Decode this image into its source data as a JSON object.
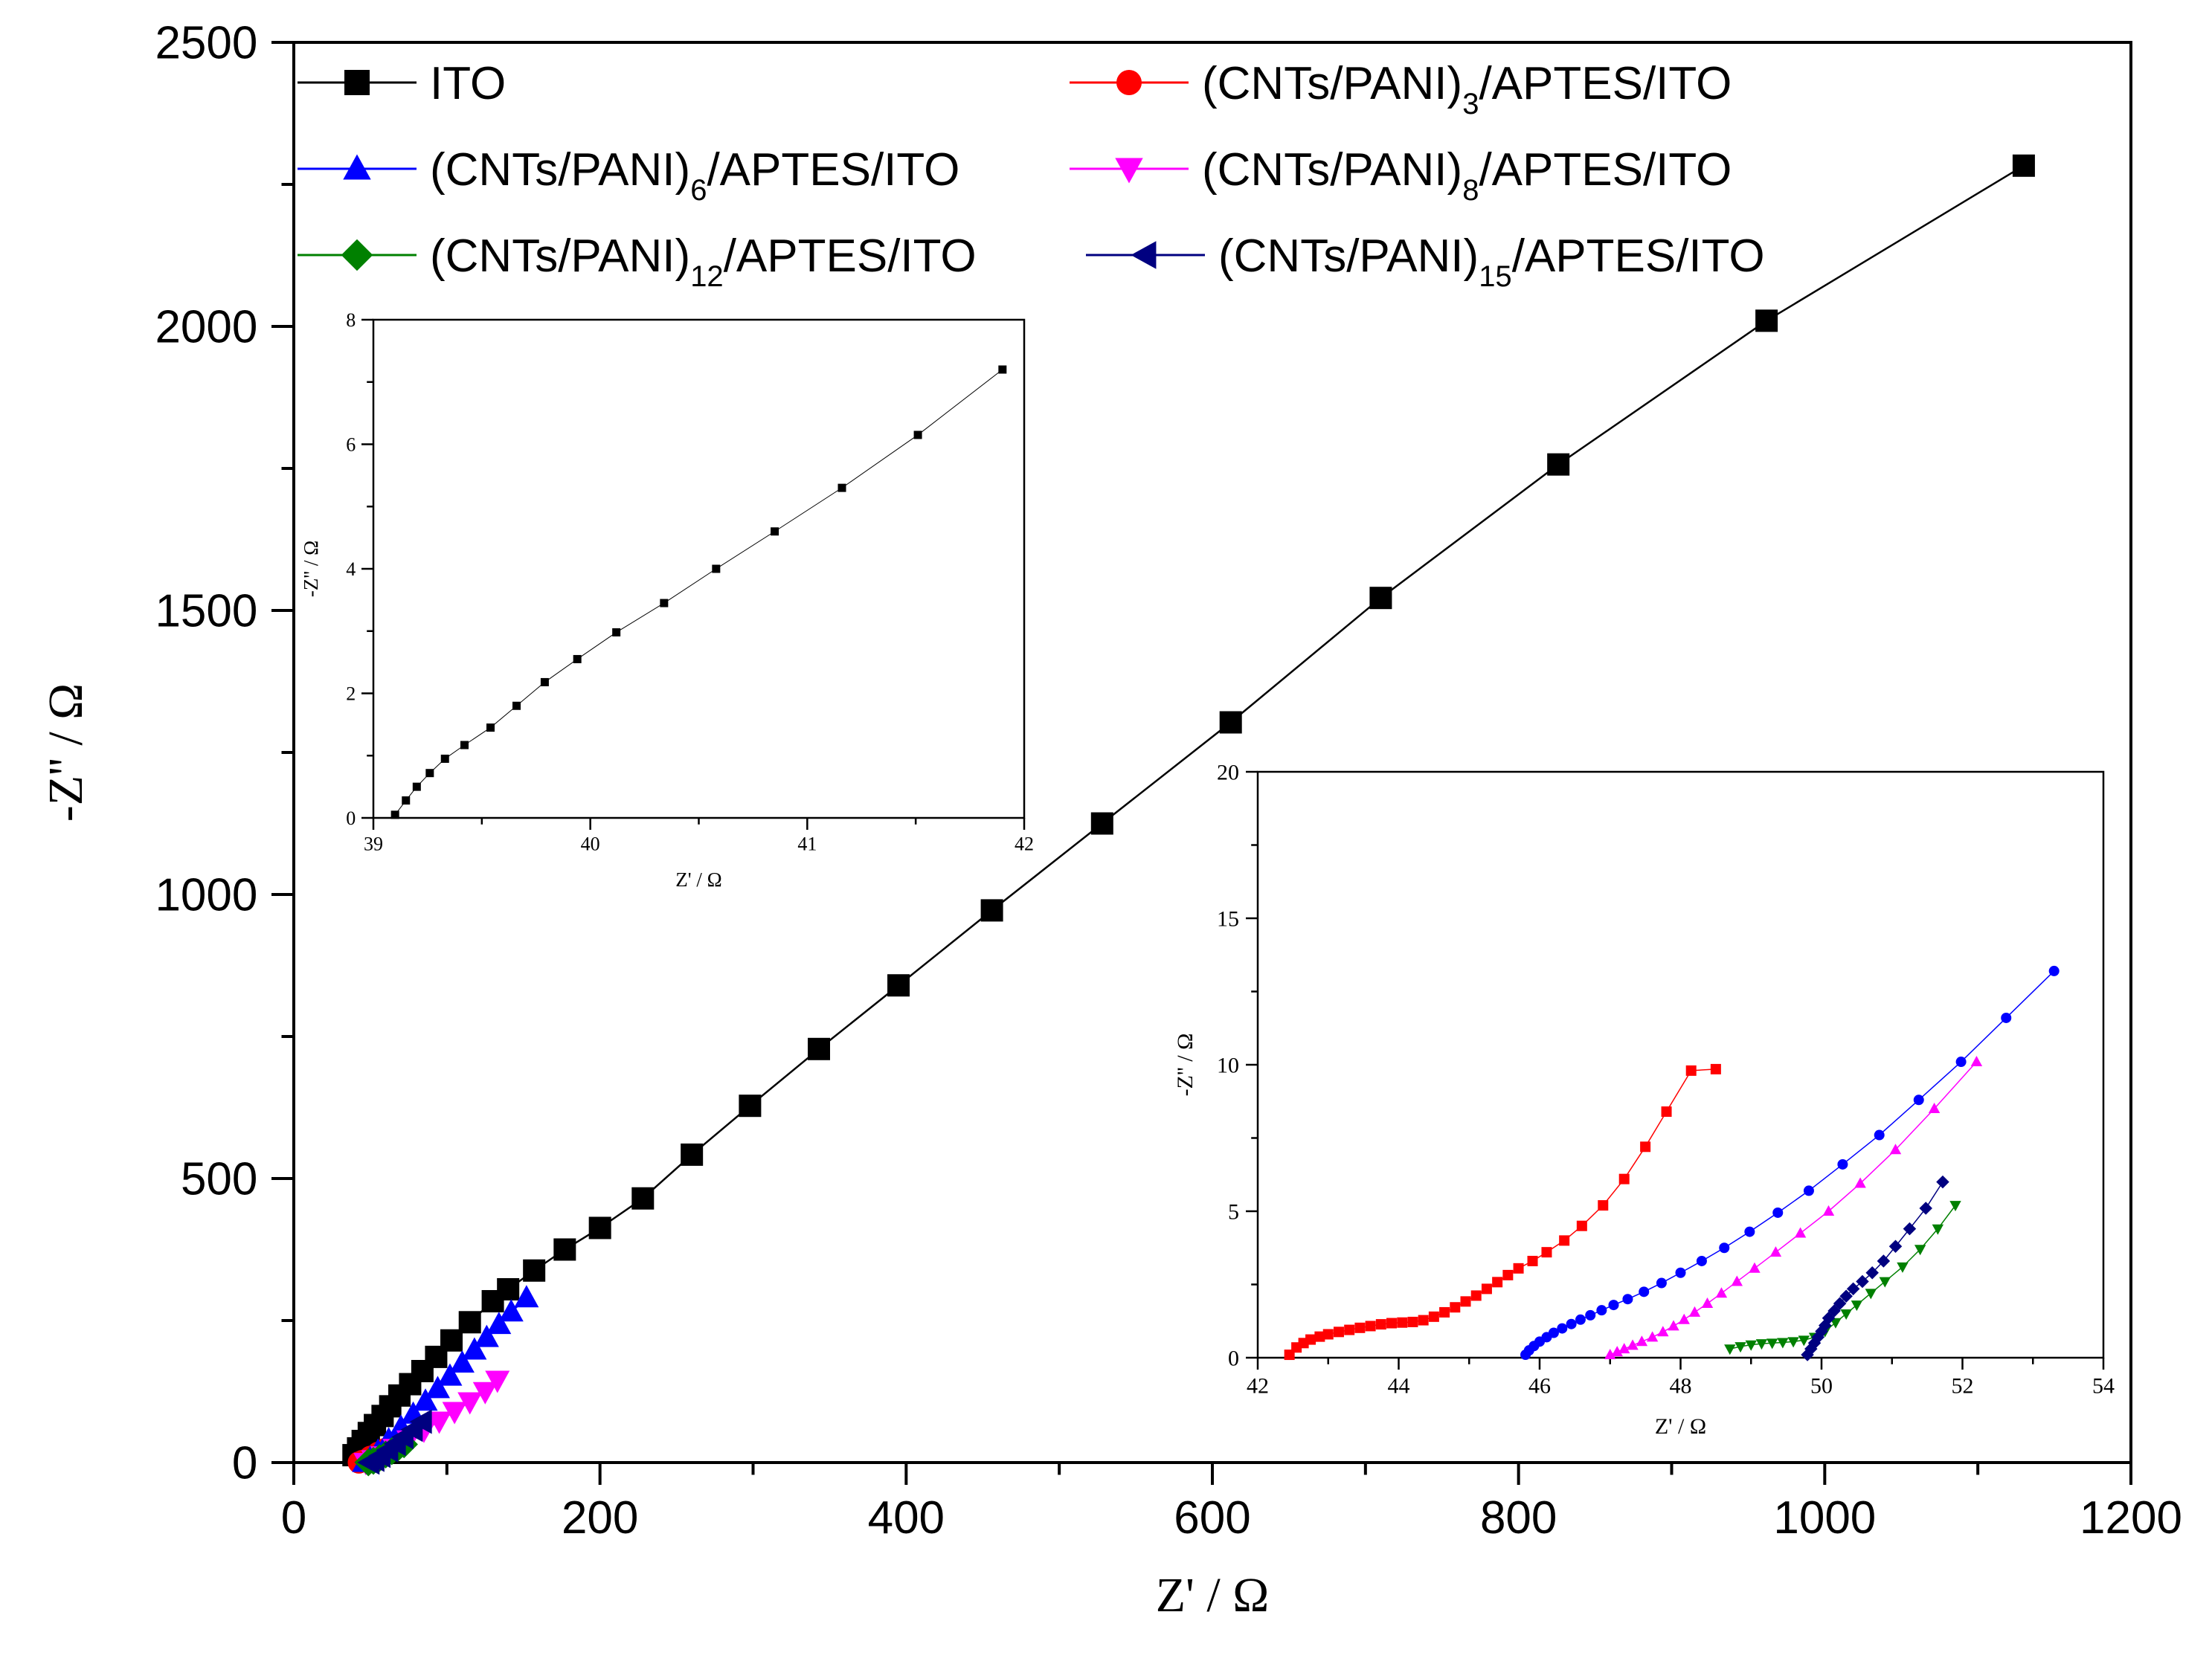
{
  "colors": {
    "ito": "#000000",
    "cnt3": "#ff0000",
    "cnt6": "#0000ff",
    "cnt8": "#ff00ff",
    "cnt12": "#008000",
    "cnt15": "#000080"
  },
  "chart_data": [
    {
      "id": "main",
      "type": "scatter",
      "xlabel": "Z' / Ω",
      "ylabel": "-Z'' / Ω",
      "xlim": [
        0,
        1200
      ],
      "ylim": [
        0,
        2500
      ],
      "xticks": [
        "0",
        "200",
        "400",
        "600",
        "800",
        "1000",
        "1200"
      ],
      "yticks": [
        "0",
        "500",
        "1000",
        "1500",
        "2000",
        "2500"
      ],
      "legend_position": "top",
      "series": [
        {
          "key": "ito",
          "name": "ITO",
          "marker": "square",
          "color": "#000000",
          "legend": {
            "main": "ITO",
            "sub": "",
            "tail": ""
          },
          "x": [
            39,
            42,
            45,
            49,
            53,
            58,
            63,
            69,
            76,
            84,
            93,
            103,
            115,
            130,
            140,
            157,
            177,
            200,
            228,
            260,
            298,
            343,
            395,
            456,
            528,
            612,
            710,
            826,
            962,
            1130
          ],
          "y": [
            13,
            25,
            38,
            52,
            66,
            82,
            99,
            118,
            138,
            161,
            186,
            215,
            247,
            284,
            305,
            338,
            375,
            413,
            465,
            542,
            628,
            728,
            840,
            972,
            1125,
            1303,
            1522,
            1757,
            2010,
            2283
          ]
        },
        {
          "key": "cnt3",
          "name": "(CNTs/PANI)3/APTES/ITO",
          "marker": "circle",
          "color": "#ff0000",
          "legend": {
            "main": "(CNTs/PANI)",
            "sub": "3",
            "tail": "/APTES/ITO"
          },
          "x": [
            42.5,
            45,
            50,
            55,
            60,
            65,
            70
          ],
          "y": [
            0.2,
            3,
            10,
            17,
            24,
            31,
            38
          ]
        },
        {
          "key": "cnt6",
          "name": "(CNTs/PANI)6/APTES/ITO",
          "marker": "triangle-up",
          "color": "#0000ff",
          "legend": {
            "main": "(CNTs/PANI)",
            "sub": "6",
            "tail": "/APTES/ITO"
          },
          "x": [
            46,
            50,
            55,
            62,
            70,
            78,
            86,
            94,
            102,
            110,
            118,
            126,
            134,
            142,
            152
          ],
          "y": [
            0.2,
            8,
            20,
            40,
            62,
            85,
            108,
            130,
            152,
            175,
            198,
            220,
            243,
            265,
            290
          ]
        },
        {
          "key": "cnt8",
          "name": "(CNTs/PANI)8/APTES/ITO",
          "marker": "triangle-down",
          "color": "#ff00ff",
          "legend": {
            "main": "(CNTs/PANI)",
            "sub": "8",
            "tail": "/APTES/ITO"
          },
          "x": [
            47,
            52,
            58,
            66,
            75,
            85,
            95,
            105,
            115,
            125,
            133
          ],
          "y": [
            0.2,
            5,
            12,
            25,
            40,
            57,
            73,
            90,
            107,
            125,
            145
          ]
        },
        {
          "key": "cnt12",
          "name": "(CNTs/PANI)12/APTES/ITO",
          "marker": "diamond",
          "color": "#008000",
          "legend": {
            "main": "(CNTs/PANI)",
            "sub": "12",
            "tail": "/APTES/ITO"
          },
          "x": [
            48.7,
            52,
            56,
            60,
            64,
            68,
            72
          ],
          "y": [
            0.3,
            3,
            8,
            14,
            20,
            26,
            32
          ]
        },
        {
          "key": "cnt15",
          "name": "(CNTs/PANI)15/APTES/ITO",
          "marker": "triangle-left",
          "color": "#000080",
          "legend": {
            "main": "(CNTs/PANI)",
            "sub": "15",
            "tail": "/APTES/ITO"
          },
          "x": [
            49.8,
            53,
            57,
            62,
            67,
            72,
            78,
            84
          ],
          "y": [
            0.1,
            5,
            12,
            22,
            33,
            45,
            58,
            72
          ]
        }
      ]
    },
    {
      "id": "inset-left",
      "type": "scatter",
      "xlabel": "Z' / Ω",
      "ylabel": "-Z'' / Ω",
      "xlim": [
        39,
        42
      ],
      "ylim": [
        0,
        8
      ],
      "xticks": [
        "39",
        "40",
        "41",
        "42"
      ],
      "yticks": [
        "0",
        "2",
        "4",
        "6",
        "8"
      ],
      "series": [
        {
          "key": "ito",
          "name": "ITO",
          "marker": "square",
          "color": "#000000",
          "x": [
            39.1,
            39.15,
            39.2,
            39.26,
            39.33,
            39.42,
            39.54,
            39.66,
            39.79,
            39.94,
            40.12,
            40.34,
            40.58,
            40.85,
            41.16,
            41.51,
            41.9
          ],
          "y": [
            0.05,
            0.28,
            0.5,
            0.72,
            0.95,
            1.17,
            1.45,
            1.8,
            2.18,
            2.55,
            2.98,
            3.45,
            4.0,
            4.6,
            5.3,
            6.15,
            7.2
          ]
        }
      ]
    },
    {
      "id": "inset-right",
      "type": "scatter",
      "xlabel": "Z' / Ω",
      "ylabel": "-Z'' / Ω",
      "xlim": [
        42,
        54
      ],
      "ylim": [
        0,
        20
      ],
      "xticks": [
        "42",
        "44",
        "46",
        "48",
        "50",
        "52",
        "54"
      ],
      "yticks": [
        "0",
        "5",
        "10",
        "15",
        "20"
      ],
      "series": [
        {
          "key": "cnt3",
          "name": "(CNTs/PANI)3/APTES/ITO",
          "marker": "square",
          "color": "#ff0000",
          "x": [
            42.45,
            42.55,
            42.65,
            42.75,
            42.88,
            43.0,
            43.15,
            43.3,
            43.45,
            43.6,
            43.75,
            43.9,
            44.05,
            44.2,
            44.35,
            44.5,
            44.65,
            44.8,
            44.95,
            45.1,
            45.25,
            45.4,
            45.55,
            45.7,
            45.9,
            46.1,
            46.35,
            46.6,
            46.9,
            47.2,
            47.5,
            47.8,
            48.15,
            48.5
          ],
          "y": [
            0.1,
            0.35,
            0.5,
            0.62,
            0.72,
            0.8,
            0.88,
            0.95,
            1.02,
            1.08,
            1.14,
            1.18,
            1.2,
            1.22,
            1.28,
            1.4,
            1.55,
            1.72,
            1.92,
            2.12,
            2.35,
            2.58,
            2.82,
            3.05,
            3.3,
            3.6,
            4.0,
            4.5,
            5.2,
            6.1,
            7.2,
            8.4,
            9.8,
            9.85
          ]
        },
        {
          "key": "cnt6",
          "name": "(CNTs/PANI)6/APTES/ITO",
          "marker": "circle",
          "color": "#0000ff",
          "x": [
            45.8,
            45.85,
            45.92,
            46.0,
            46.1,
            46.2,
            46.32,
            46.45,
            46.58,
            46.72,
            46.88,
            47.05,
            47.25,
            47.48,
            47.73,
            48.0,
            48.3,
            48.62,
            48.98,
            49.38,
            49.82,
            50.3,
            50.82,
            51.38,
            51.98,
            52.62,
            53.3
          ],
          "y": [
            0.1,
            0.25,
            0.4,
            0.55,
            0.7,
            0.85,
            1.0,
            1.15,
            1.3,
            1.45,
            1.62,
            1.8,
            2.0,
            2.25,
            2.55,
            2.9,
            3.3,
            3.75,
            4.3,
            4.95,
            5.7,
            6.6,
            7.6,
            8.8,
            10.1,
            11.6,
            13.2
          ]
        },
        {
          "key": "cnt8",
          "name": "(CNTs/PANI)8/APTES/ITO",
          "marker": "triangle-up",
          "color": "#ff00ff",
          "x": [
            47.0,
            47.1,
            47.2,
            47.32,
            47.45,
            47.6,
            47.75,
            47.9,
            48.05,
            48.2,
            48.38,
            48.58,
            48.8,
            49.05,
            49.35,
            49.7,
            50.1,
            50.55,
            51.05,
            51.6,
            52.2
          ],
          "y": [
            0.1,
            0.2,
            0.3,
            0.42,
            0.55,
            0.7,
            0.88,
            1.08,
            1.3,
            1.55,
            1.85,
            2.2,
            2.6,
            3.05,
            3.6,
            4.25,
            5.0,
            5.95,
            7.1,
            8.5,
            10.1
          ]
        },
        {
          "key": "cnt12",
          "name": "(CNTs/PANI)12/APTES/ITO",
          "marker": "triangle-down",
          "color": "#008000",
          "x": [
            48.7,
            48.85,
            49.0,
            49.15,
            49.3,
            49.45,
            49.6,
            49.75,
            49.9,
            50.05,
            50.2,
            50.35,
            50.5,
            50.7,
            50.9,
            51.15,
            51.4,
            51.65,
            51.9
          ],
          "y": [
            0.3,
            0.38,
            0.44,
            0.48,
            0.5,
            0.52,
            0.55,
            0.6,
            0.7,
            0.9,
            1.2,
            1.5,
            1.8,
            2.2,
            2.6,
            3.1,
            3.7,
            4.4,
            5.2
          ]
        },
        {
          "key": "cnt15",
          "name": "(CNTs/PANI)15/APTES/ITO",
          "marker": "diamond",
          "color": "#000080",
          "x": [
            49.8,
            49.85,
            49.9,
            49.95,
            50.0,
            50.05,
            50.1,
            50.18,
            50.26,
            50.35,
            50.45,
            50.58,
            50.72,
            50.88,
            51.05,
            51.25,
            51.48,
            51.72
          ],
          "y": [
            0.1,
            0.3,
            0.5,
            0.7,
            0.9,
            1.1,
            1.35,
            1.6,
            1.85,
            2.1,
            2.35,
            2.6,
            2.9,
            3.3,
            3.8,
            4.4,
            5.1,
            6.0
          ]
        }
      ]
    }
  ]
}
